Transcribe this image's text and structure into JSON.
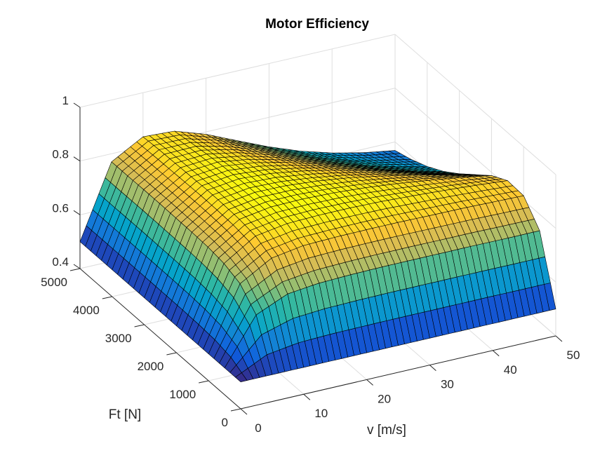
{
  "chart_data": {
    "type": "surface",
    "title": "Motor Efficiency",
    "xlabel": "v [m/s]",
    "ylabel": "Ft [N]",
    "zlabel": "",
    "xlim": [
      0,
      50
    ],
    "ylim": [
      0,
      5000
    ],
    "zlim": [
      0.4,
      1
    ],
    "xticks": [
      "0",
      "10",
      "20",
      "30",
      "40",
      "50"
    ],
    "yticks": [
      "0",
      "1000",
      "2000",
      "3000",
      "4000",
      "5000"
    ],
    "zticks": [
      "0.4",
      "0.6",
      "0.8",
      "1"
    ],
    "grid": true,
    "colormap": "parula",
    "edge_color": "#000000",
    "v": [
      0,
      5,
      10,
      15,
      20,
      25,
      30,
      35,
      40,
      45,
      50
    ],
    "Ft": [
      0,
      500,
      1000,
      1500,
      2000,
      2500,
      3000,
      3500,
      4000,
      4500,
      5000
    ],
    "z": [
      [
        0.5,
        0.5,
        0.5,
        0.5,
        0.5,
        0.5,
        0.5,
        0.5,
        0.5,
        0.5,
        0.5
      ],
      [
        0.5,
        0.67,
        0.734,
        0.757,
        0.766,
        0.769,
        0.77,
        0.771,
        0.771,
        0.77,
        0.77
      ],
      [
        0.5,
        0.721,
        0.802,
        0.832,
        0.842,
        0.845,
        0.846,
        0.844,
        0.842,
        0.84,
        0.836
      ],
      [
        0.5,
        0.734,
        0.821,
        0.851,
        0.861,
        0.863,
        0.861,
        0.856,
        0.849,
        0.84,
        0.83
      ],
      [
        0.5,
        0.738,
        0.825,
        0.855,
        0.863,
        0.861,
        0.854,
        0.842,
        0.827,
        0.81,
        0.791
      ],
      [
        0.5,
        0.74,
        0.826,
        0.855,
        0.859,
        0.851,
        0.836,
        0.816,
        0.792,
        0.766,
        0.74
      ],
      [
        0.5,
        0.74,
        0.826,
        0.852,
        0.851,
        0.836,
        0.812,
        0.783,
        0.751,
        0.72,
        0.69
      ],
      [
        0.5,
        0.74,
        0.824,
        0.846,
        0.839,
        0.815,
        0.783,
        0.746,
        0.71,
        0.676,
        0.647
      ],
      [
        0.5,
        0.74,
        0.823,
        0.839,
        0.824,
        0.791,
        0.751,
        0.71,
        0.672,
        0.639,
        0.613
      ],
      [
        0.5,
        0.739,
        0.82,
        0.831,
        0.807,
        0.765,
        0.719,
        0.676,
        0.639,
        0.611,
        0.587
      ],
      [
        0.5,
        0.739,
        0.817,
        0.821,
        0.788,
        0.739,
        0.69,
        0.647,
        0.613,
        0.587,
        0.568
      ]
    ]
  }
}
